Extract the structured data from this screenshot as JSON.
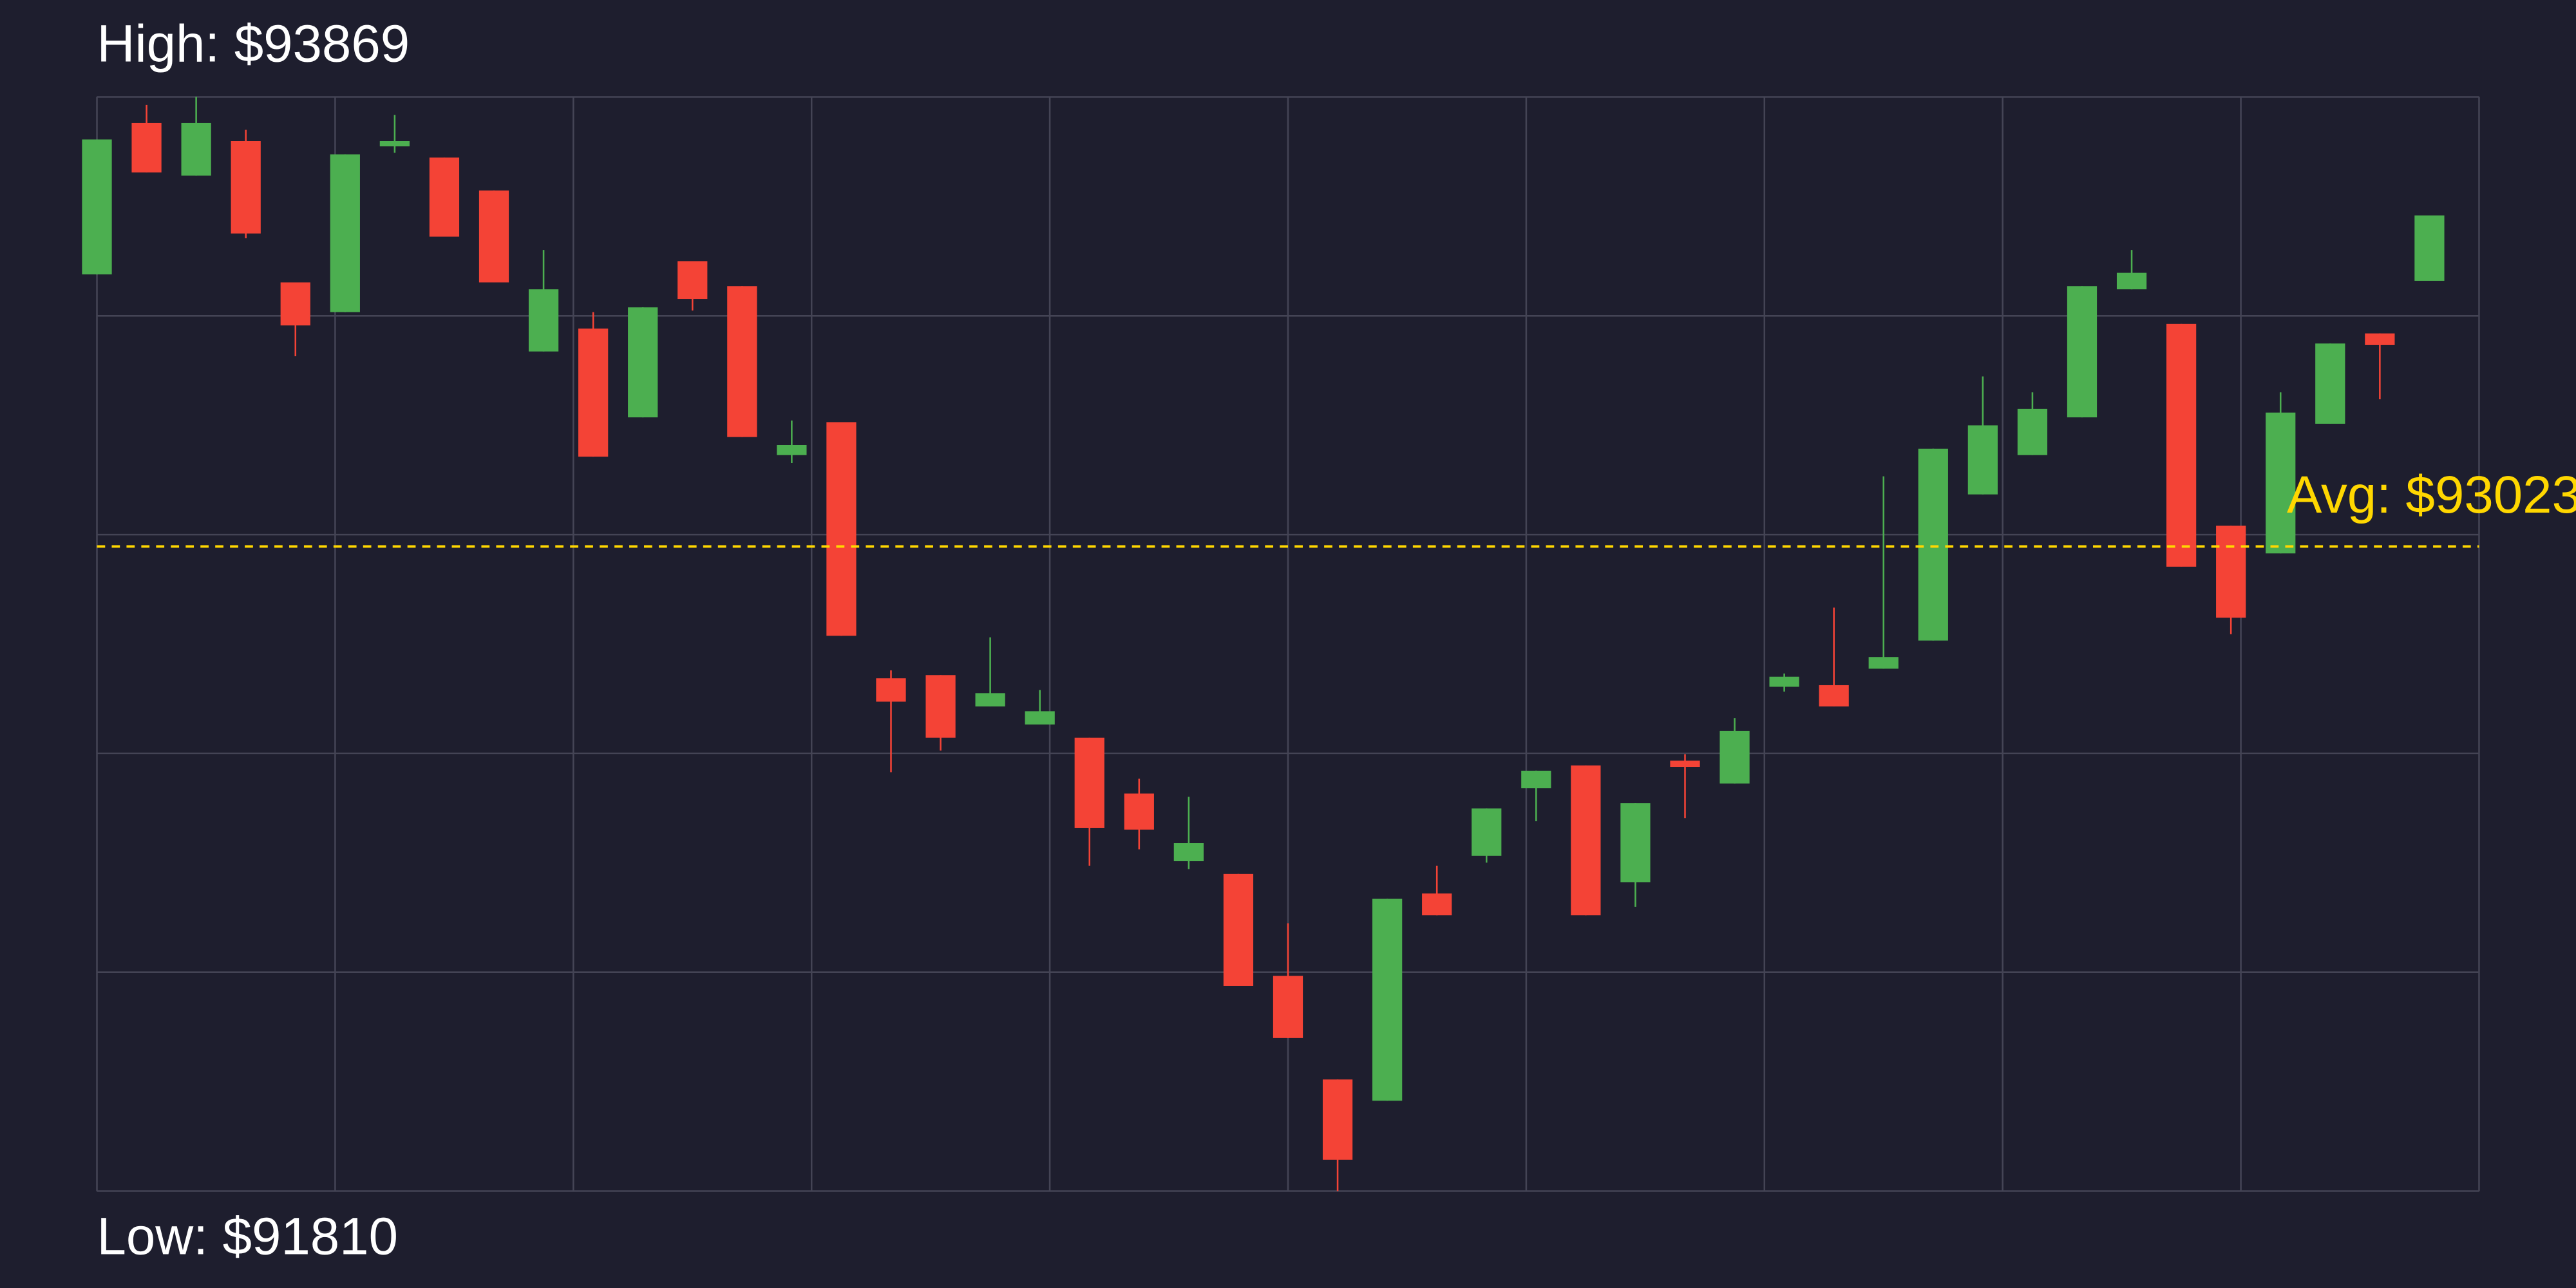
{
  "chart_data": {
    "type": "candlestick",
    "high_label": {
      "value": 93869,
      "label": "High: $93869"
    },
    "low_label": {
      "value": 91810,
      "label": "Low: $91810"
    },
    "average": {
      "value": 93023,
      "label": "Avg: $93023"
    },
    "ylim": [
      91810,
      93869
    ],
    "grid": true,
    "up_color": "#4caf50",
    "down_color": "#f44336",
    "average_color": "#ffd700",
    "open": [
      93535,
      93820,
      93721,
      93786,
      93520,
      93464,
      93776,
      93755,
      93693,
      93390,
      93433,
      93266,
      93560,
      93513,
      93195,
      93257,
      92775,
      92781,
      92722,
      92688,
      92663,
      92558,
      92431,
      92407,
      92215,
      92020,
      91980,
      92370,
      92441,
      92568,
      92611,
      92391,
      92620,
      92577,
      92759,
      92762,
      92793,
      92846,
      93121,
      93195,
      93266,
      93507,
      93442,
      93062,
      93010,
      93254,
      93424,
      93523
    ],
    "high": [
      93789,
      93854,
      93869,
      93807,
      93520,
      93761,
      93835,
      93755,
      93693,
      93581,
      93464,
      93473,
      93560,
      93513,
      93260,
      93257,
      92790,
      92781,
      92852,
      92753,
      92663,
      92586,
      92552,
      92407,
      92314,
      92020,
      92360,
      92422,
      92530,
      92601,
      92611,
      92540,
      92632,
      92700,
      92784,
      92908,
      93155,
      93207,
      93343,
      93313,
      93513,
      93581,
      93442,
      93062,
      93313,
      93405,
      93424,
      93646
    ],
    "low": [
      93535,
      93727,
      93721,
      93603,
      93381,
      93464,
      93764,
      93606,
      93520,
      93390,
      93192,
      93266,
      93467,
      93229,
      93180,
      92855,
      92598,
      92639,
      92722,
      92688,
      92422,
      92453,
      92416,
      92196,
      92098,
      91810,
      91980,
      92329,
      92428,
      92506,
      92329,
      92345,
      92512,
      92577,
      92750,
      92722,
      92793,
      92846,
      93121,
      93195,
      93266,
      93507,
      92985,
      92858,
      93010,
      93254,
      93300,
      93523
    ],
    "close": [
      93789,
      93727,
      93820,
      93612,
      93439,
      93761,
      93786,
      93606,
      93520,
      93507,
      93192,
      93473,
      93489,
      93229,
      93214,
      92855,
      92731,
      92663,
      92747,
      92713,
      92493,
      92490,
      92465,
      92196,
      92098,
      91869,
      92360,
      92329,
      92530,
      92601,
      92329,
      92540,
      92608,
      92676,
      92778,
      92722,
      92815,
      93207,
      93251,
      93282,
      93513,
      93538,
      92985,
      92889,
      93275,
      93405,
      93402,
      93646
    ]
  }
}
